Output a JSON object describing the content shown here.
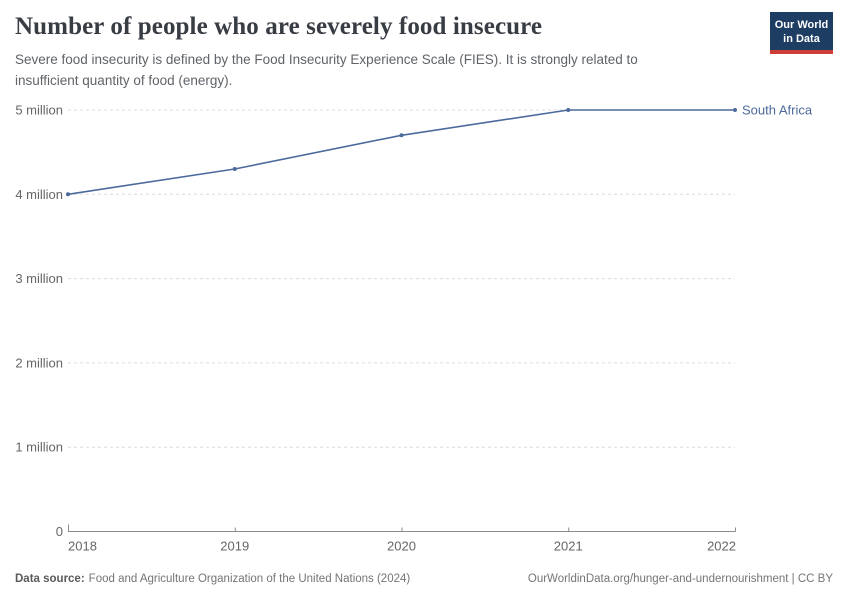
{
  "header": {
    "title": "Number of people who are severely food insecure",
    "subtitle": "Severe food insecurity is defined by the Food Insecurity Experience Scale (FIES). It is strongly related to insufficient quantity of food (energy)."
  },
  "logo": {
    "line1": "Our World",
    "line2": "in Data",
    "background_color": "#1d3d63",
    "stripe_color": "#cc3e37"
  },
  "chart_data": {
    "type": "line",
    "title": "Number of people who are severely food insecure",
    "x": [
      2018,
      2019,
      2020,
      2021,
      2022
    ],
    "series": [
      {
        "name": "South Africa",
        "values_millions": [
          4.0,
          4.3,
          4.7,
          5.0,
          5.0
        ],
        "color": "#4c6a9c"
      }
    ],
    "xlabel": "",
    "ylabel": "",
    "ylim_millions": [
      0,
      5
    ],
    "yticks": [
      {
        "value": 0,
        "label": "0"
      },
      {
        "value": 1,
        "label": "1 million"
      },
      {
        "value": 2,
        "label": "2 million"
      },
      {
        "value": 3,
        "label": "3 million"
      },
      {
        "value": 4,
        "label": "4 million"
      },
      {
        "value": 5,
        "label": "5 million"
      }
    ],
    "grid": "horizontal dashed, light gray",
    "legend": "inline label at line end, right side"
  },
  "footer": {
    "datasource_label": "Data source:",
    "datasource_text": "Food and Agriculture Organization of the United Nations (2024)",
    "attribution": "OurWorldinData.org/hunger-and-undernourishment | CC BY"
  }
}
